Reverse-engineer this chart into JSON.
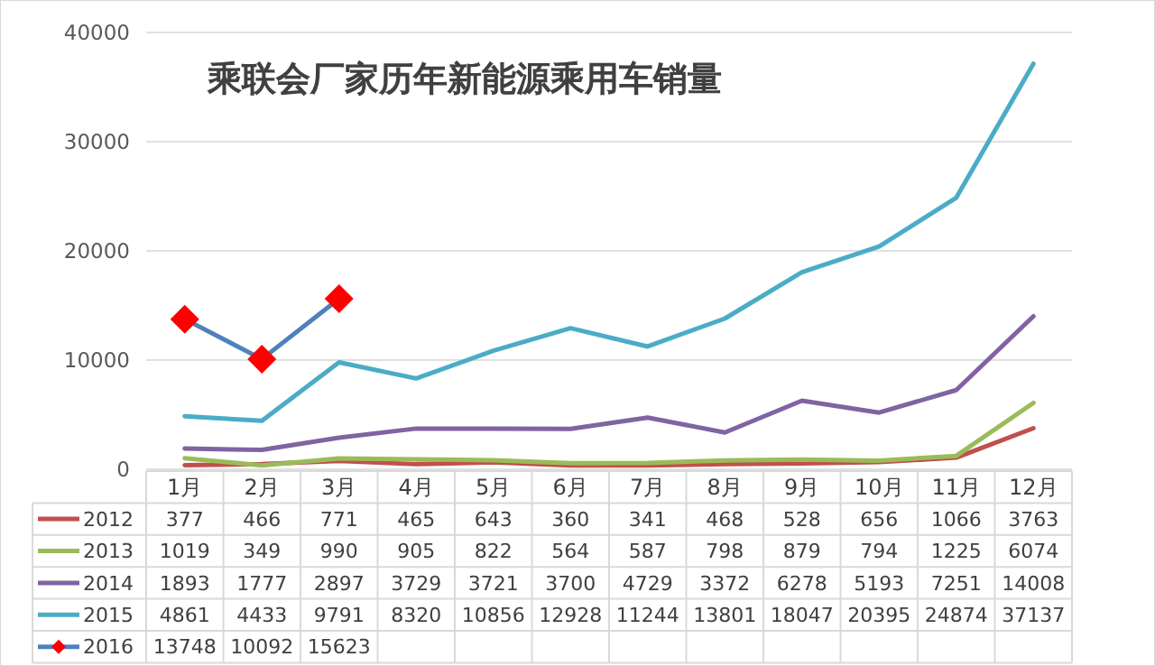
{
  "chart_data": {
    "type": "line",
    "title": "乘联会厂家历年新能源乘用车销量",
    "categories": [
      "1月",
      "2月",
      "3月",
      "4月",
      "5月",
      "6月",
      "7月",
      "8月",
      "9月",
      "10月",
      "11月",
      "12月"
    ],
    "series": [
      {
        "name": "2012",
        "color": "#c0504d",
        "values": [
          377,
          466,
          771,
          465,
          643,
          360,
          341,
          468,
          528,
          656,
          1066,
          3763
        ]
      },
      {
        "name": "2013",
        "color": "#9bbb59",
        "values": [
          1019,
          349,
          990,
          905,
          822,
          564,
          587,
          798,
          879,
          794,
          1225,
          6074
        ]
      },
      {
        "name": "2014",
        "color": "#8064a2",
        "values": [
          1893,
          1777,
          2897,
          3729,
          3721,
          3700,
          4729,
          3372,
          6278,
          5193,
          7251,
          14008
        ]
      },
      {
        "name": "2015",
        "color": "#4bacc6",
        "values": [
          4861,
          4433,
          9791,
          8320,
          10856,
          12928,
          11244,
          13801,
          18047,
          20395,
          24874,
          37137
        ]
      },
      {
        "name": "2016",
        "color": "#4f81bd",
        "marker": "diamond",
        "colors": [
          "#ff0000",
          "#ff0000",
          "#ff0000",
          null,
          null,
          null,
          null,
          null,
          null,
          null,
          null,
          null
        ],
        "values": [
          13748,
          10092,
          15623,
          null,
          null,
          null,
          null,
          null,
          null,
          null,
          null,
          null
        ]
      }
    ],
    "ylim": [
      0,
      40000
    ],
    "yticks": [
      0,
      10000,
      20000,
      30000,
      40000
    ],
    "grid": "y",
    "legend": "bottom",
    "data_labels": true
  }
}
